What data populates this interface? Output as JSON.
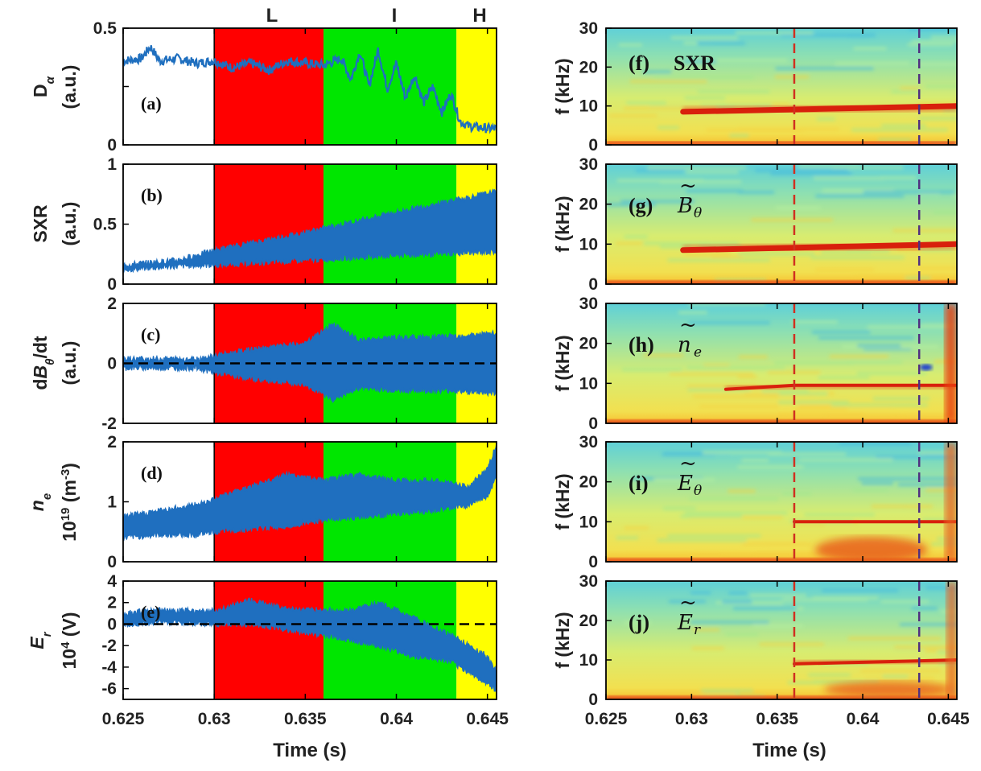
{
  "figure": {
    "x_axis_label": "Time (s)",
    "x_ticks": [
      "0.625",
      "0.63",
      "0.635",
      "0.64",
      "0.645"
    ],
    "phase_labels": [
      "L",
      "I",
      "H"
    ],
    "phase_colors": [
      "#ff0000",
      "#00e600",
      "#ffff00"
    ],
    "series_color": "#1f6fbf"
  },
  "chart_data": [
    {
      "type": "line",
      "panel": "(a)",
      "ylabel_lines": [
        "D",
        "(a.u.)"
      ],
      "ylabel_sub": "α",
      "yticks": [
        "0.5",
        "",
        "0"
      ],
      "ylim": [
        0,
        0.5
      ],
      "xlim": [
        0.625,
        0.6455
      ],
      "phases": [
        {
          "name": "L",
          "start": 0.63,
          "end": 0.636
        },
        {
          "name": "I",
          "start": 0.636,
          "end": 0.6433
        },
        {
          "name": "H",
          "start": 0.6433,
          "end": 0.6455
        }
      ],
      "series": [
        {
          "x": [
            0.625,
            0.626,
            0.6265,
            0.627,
            0.628,
            0.629,
            0.63,
            0.631,
            0.632,
            0.633,
            0.634,
            0.635,
            0.636,
            0.637,
            0.6375,
            0.638,
            0.6385,
            0.639,
            0.6395,
            0.64,
            0.6405,
            0.641,
            0.6415,
            0.642,
            0.6425,
            0.643,
            0.6435,
            0.644,
            0.645,
            0.6455
          ],
          "y": [
            0.36,
            0.37,
            0.42,
            0.36,
            0.37,
            0.35,
            0.36,
            0.33,
            0.35,
            0.32,
            0.36,
            0.35,
            0.34,
            0.37,
            0.28,
            0.4,
            0.25,
            0.41,
            0.24,
            0.35,
            0.2,
            0.3,
            0.18,
            0.25,
            0.14,
            0.22,
            0.1,
            0.08,
            0.07,
            0.07
          ]
        }
      ]
    },
    {
      "type": "area",
      "panel": "(b)",
      "ylabel_lines": [
        "SXR",
        "(a.u.)"
      ],
      "yticks": [
        "1",
        "0.5",
        "0"
      ],
      "ylim": [
        0,
        1
      ],
      "xlim": [
        0.625,
        0.6455
      ],
      "series": [
        {
          "x": [
            0.625,
            0.628,
            0.63,
            0.635,
            0.64,
            0.6455
          ],
          "upper": [
            0.16,
            0.2,
            0.28,
            0.43,
            0.6,
            0.77
          ],
          "lower": [
            0.12,
            0.15,
            0.16,
            0.2,
            0.24,
            0.27
          ]
        }
      ]
    },
    {
      "type": "area",
      "panel": "(c)",
      "ylabel_lines": [
        "d",
        "/dt"
      ],
      "ylabel_mid": "B",
      "ylabel_sub": "θ",
      "ylabel_unit": "(a.u.)",
      "yticks": [
        "2",
        "0",
        "-2"
      ],
      "ylim": [
        -2,
        2
      ],
      "xlim": [
        0.625,
        0.6455
      ],
      "baseline": 0,
      "series": [
        {
          "x": [
            0.625,
            0.629,
            0.63,
            0.632,
            0.635,
            0.6365,
            0.638,
            0.64,
            0.643,
            0.6455
          ],
          "upper": [
            0.15,
            0.15,
            0.25,
            0.45,
            0.65,
            1.3,
            0.75,
            0.85,
            0.9,
            1.0
          ],
          "lower": [
            -0.15,
            -0.15,
            -0.3,
            -0.5,
            -0.7,
            -1.2,
            -0.8,
            -0.9,
            -0.9,
            -1.0
          ]
        }
      ]
    },
    {
      "type": "line",
      "panel": "(d)",
      "ylabel_lines": [
        "n",
        "10",
        " (m",
        ")"
      ],
      "ylabel_sub": "e",
      "ylabel_sup1": "19",
      "ylabel_sup2": "-3",
      "yticks": [
        "2",
        "1",
        "0"
      ],
      "ylim": [
        0,
        2
      ],
      "xlim": [
        0.625,
        0.6455
      ],
      "series": [
        {
          "x": [
            0.625,
            0.627,
            0.629,
            0.63,
            0.632,
            0.634,
            0.636,
            0.638,
            0.64,
            0.642,
            0.644,
            0.645,
            0.6455
          ],
          "upper": [
            0.75,
            0.85,
            0.95,
            1.05,
            1.25,
            1.45,
            1.35,
            1.45,
            1.35,
            1.35,
            1.25,
            1.55,
            1.95
          ],
          "lower": [
            0.4,
            0.45,
            0.45,
            0.5,
            0.55,
            0.6,
            0.7,
            0.75,
            0.8,
            0.85,
            0.95,
            1.1,
            1.4
          ]
        }
      ]
    },
    {
      "type": "line",
      "panel": "(e)",
      "ylabel_lines": [
        "E",
        "10",
        " (V)"
      ],
      "ylabel_sub": "r",
      "ylabel_sup1": "4",
      "yticks": [
        "4",
        "2",
        "0",
        "-2",
        "-4",
        "-6"
      ],
      "ylim": [
        -7,
        4
      ],
      "xlim": [
        0.625,
        0.6455
      ],
      "baseline": 0,
      "series": [
        {
          "x": [
            0.625,
            0.627,
            0.63,
            0.632,
            0.634,
            0.636,
            0.6375,
            0.639,
            0.64,
            0.641,
            0.642,
            0.643,
            0.644,
            0.645,
            0.6455
          ],
          "upper": [
            1.0,
            1.3,
            1.2,
            2.2,
            1.4,
            1.3,
            1.2,
            2.0,
            1.3,
            0.5,
            -0.3,
            -1.0,
            -2.0,
            -3.0,
            -4.5
          ],
          "lower": [
            0.0,
            0.2,
            0.0,
            0.0,
            -0.5,
            -1.0,
            -1.5,
            -2.0,
            -2.5,
            -3.0,
            -3.2,
            -3.5,
            -4.5,
            -5.5,
            -6.2
          ]
        }
      ]
    },
    {
      "type": "heatmap",
      "panel": "(f)",
      "label_text": "SXR",
      "ylabel": "f (kHz)",
      "yticks": [
        "30",
        "20",
        "10",
        "0"
      ],
      "ylim": [
        0,
        30
      ],
      "xlim": [
        0.625,
        0.6455
      ],
      "mode_frequency": [
        {
          "x": 0.6295,
          "f": 8.5
        },
        {
          "x": 0.635,
          "f": 9.0
        },
        {
          "x": 0.6455,
          "f": 10.0
        }
      ],
      "dashed_lines": [
        0.636,
        0.6433
      ]
    },
    {
      "type": "heatmap",
      "panel": "(g)",
      "ylabel": "f (kHz)",
      "yticks": [
        "30",
        "20",
        "10",
        "0"
      ],
      "ylim": [
        0,
        30
      ],
      "xlim": [
        0.625,
        0.6455
      ],
      "mode_frequency": [
        {
          "x": 0.6295,
          "f": 8.5
        },
        {
          "x": 0.635,
          "f": 9.0
        },
        {
          "x": 0.6455,
          "f": 10.0
        }
      ],
      "dashed_lines": [
        0.636,
        0.6433
      ]
    },
    {
      "type": "heatmap",
      "panel": "(h)",
      "ylabel": "f (kHz)",
      "yticks": [
        "30",
        "20",
        "10",
        "0"
      ],
      "ylim": [
        0,
        30
      ],
      "xlim": [
        0.625,
        0.6455
      ],
      "mode_frequency": [
        {
          "x": 0.632,
          "f": 8.5
        },
        {
          "x": 0.636,
          "f": 9.5
        },
        {
          "x": 0.6455,
          "f": 9.5
        }
      ],
      "dashed_lines": [
        0.636,
        0.6433
      ]
    },
    {
      "type": "heatmap",
      "panel": "(i)",
      "ylabel": "f (kHz)",
      "yticks": [
        "30",
        "20",
        "10",
        "0"
      ],
      "ylim": [
        0,
        30
      ],
      "xlim": [
        0.625,
        0.6455
      ],
      "mode_frequency": [
        {
          "x": 0.636,
          "f": 10.0
        },
        {
          "x": 0.6455,
          "f": 10.0
        }
      ],
      "dashed_lines": [
        0.636,
        0.6433
      ]
    },
    {
      "type": "heatmap",
      "panel": "(j)",
      "ylabel": "f (kHz)",
      "yticks": [
        "30",
        "20",
        "10",
        "0"
      ],
      "ylim": [
        0,
        30
      ],
      "xlim": [
        0.625,
        0.6455
      ],
      "mode_frequency": [
        {
          "x": 0.636,
          "f": 9.0
        },
        {
          "x": 0.6455,
          "f": 10.0
        }
      ],
      "dashed_lines": [
        0.636,
        0.6433
      ]
    }
  ]
}
